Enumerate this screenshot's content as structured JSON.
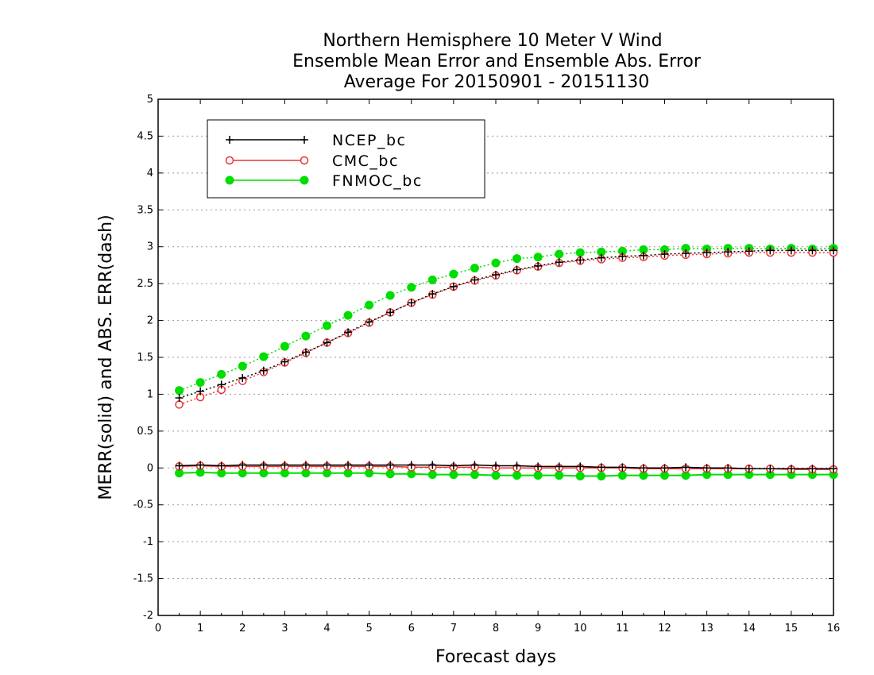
{
  "chart_data": {
    "type": "line",
    "title_lines": [
      "Northern Hemisphere 10 Meter V Wind",
      "Ensemble Mean Error and Ensemble Abs. Error",
      "Average For 20150901 - 20151130"
    ],
    "xlabel": "Forecast days",
    "ylabel": "MERR(solid) and ABS. ERR(dash)",
    "xlim": [
      0,
      16
    ],
    "ylim": [
      -2,
      5
    ],
    "xticks": [
      "0",
      "1",
      "2",
      "3",
      "4",
      "5",
      "6",
      "7",
      "8",
      "9",
      "10",
      "11",
      "12",
      "13",
      "14",
      "15",
      "16"
    ],
    "yticks": [
      "5",
      "4.5",
      "4",
      "3.5",
      "3",
      "2.5",
      "2",
      "1.5",
      "1",
      "0.5",
      "0",
      "-0.5",
      "-1",
      "-1.5",
      "-2"
    ],
    "ytick_values": [
      5,
      4.5,
      4,
      3.5,
      3,
      2.5,
      2,
      1.5,
      1,
      0.5,
      0,
      -0.5,
      -1,
      -1.5,
      -2
    ],
    "grid": "horizontal dotted",
    "legend_position": "top-left",
    "x": [
      0.5,
      1,
      1.5,
      2,
      2.5,
      3,
      3.5,
      4,
      4.5,
      5,
      5.5,
      6,
      6.5,
      7,
      7.5,
      8,
      8.5,
      9,
      9.5,
      10,
      10.5,
      11,
      11.5,
      12,
      12.5,
      13,
      13.5,
      14,
      14.5,
      15,
      15.5,
      16
    ],
    "series": [
      {
        "name": "NCEP_bc",
        "color": "#000000",
        "marker": "plus",
        "merr": [
          0.03,
          0.04,
          0.03,
          0.04,
          0.04,
          0.04,
          0.04,
          0.04,
          0.04,
          0.04,
          0.04,
          0.04,
          0.04,
          0.03,
          0.04,
          0.03,
          0.03,
          0.02,
          0.02,
          0.02,
          0.01,
          0.01,
          0.0,
          0.0,
          0.01,
          0.0,
          0.0,
          -0.01,
          -0.01,
          -0.01,
          -0.01,
          -0.01
        ],
        "abserr": [
          0.95,
          1.04,
          1.13,
          1.22,
          1.32,
          1.44,
          1.57,
          1.7,
          1.84,
          1.98,
          2.11,
          2.24,
          2.36,
          2.46,
          2.55,
          2.62,
          2.69,
          2.74,
          2.79,
          2.82,
          2.85,
          2.87,
          2.88,
          2.9,
          2.91,
          2.92,
          2.93,
          2.94,
          2.95,
          2.95,
          2.95,
          2.95
        ]
      },
      {
        "name": "CMC_bc",
        "color": "#ee3333",
        "marker": "open-circle",
        "merr": [
          0.02,
          0.03,
          0.02,
          0.02,
          0.02,
          0.02,
          0.02,
          0.02,
          0.02,
          0.02,
          0.02,
          0.01,
          0.01,
          0.01,
          0.01,
          0.0,
          0.0,
          0.0,
          0.0,
          0.0,
          0.0,
          0.0,
          -0.01,
          -0.01,
          -0.01,
          -0.01,
          -0.01,
          -0.01,
          -0.01,
          -0.02,
          -0.02,
          -0.02
        ],
        "abserr": [
          0.86,
          0.96,
          1.06,
          1.18,
          1.3,
          1.43,
          1.56,
          1.7,
          1.83,
          1.97,
          2.11,
          2.24,
          2.35,
          2.46,
          2.54,
          2.61,
          2.68,
          2.73,
          2.78,
          2.81,
          2.83,
          2.85,
          2.86,
          2.88,
          2.89,
          2.9,
          2.91,
          2.92,
          2.92,
          2.92,
          2.92,
          2.92
        ]
      },
      {
        "name": "FNMOC_bc",
        "color": "#00dd00",
        "marker": "filled-circle",
        "merr": [
          -0.07,
          -0.06,
          -0.07,
          -0.07,
          -0.07,
          -0.07,
          -0.07,
          -0.07,
          -0.07,
          -0.07,
          -0.08,
          -0.08,
          -0.09,
          -0.09,
          -0.09,
          -0.1,
          -0.1,
          -0.1,
          -0.1,
          -0.11,
          -0.11,
          -0.1,
          -0.1,
          -0.1,
          -0.1,
          -0.09,
          -0.09,
          -0.09,
          -0.09,
          -0.09,
          -0.09,
          -0.09
        ],
        "abserr": [
          1.05,
          1.16,
          1.27,
          1.38,
          1.51,
          1.65,
          1.79,
          1.93,
          2.07,
          2.21,
          2.34,
          2.45,
          2.55,
          2.63,
          2.71,
          2.78,
          2.84,
          2.86,
          2.9,
          2.92,
          2.93,
          2.94,
          2.96,
          2.96,
          2.98,
          2.97,
          2.98,
          2.98,
          2.97,
          2.98,
          2.97,
          2.98
        ]
      }
    ]
  }
}
